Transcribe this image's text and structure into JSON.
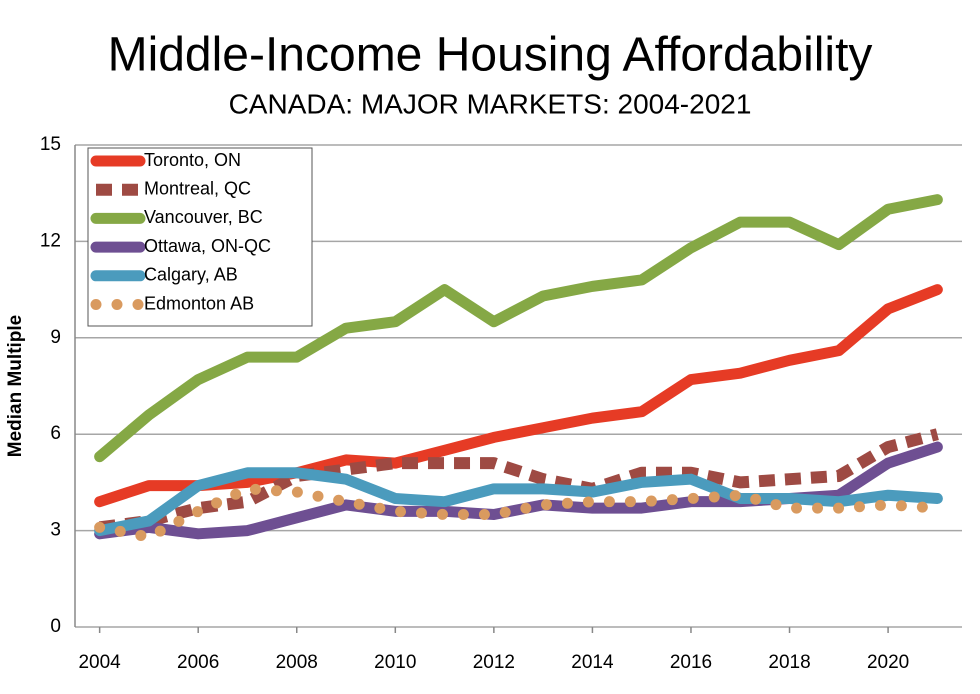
{
  "chart_data": {
    "type": "line",
    "title": "Middle-Income Housing Affordability",
    "subtitle": "CANADA: MAJOR MARKETS: 2004-2021",
    "y_label": "Median Multiple",
    "x": [
      2004,
      2005,
      2006,
      2007,
      2008,
      2009,
      2010,
      2011,
      2012,
      2013,
      2014,
      2015,
      2016,
      2017,
      2018,
      2019,
      2020,
      2021
    ],
    "xlim": [
      2003.5,
      2021.5
    ],
    "xticks": [
      2004,
      2006,
      2008,
      2010,
      2012,
      2014,
      2016,
      2018,
      2020
    ],
    "ylim": [
      0,
      15
    ],
    "yticks": [
      0,
      3,
      6,
      9,
      12,
      15
    ],
    "grid": true,
    "legend": "top-left",
    "series": [
      {
        "name": "Toronto, ON",
        "color": "#e63b25",
        "style": "solid",
        "values": [
          3.9,
          4.4,
          4.4,
          4.5,
          4.8,
          5.2,
          5.1,
          5.5,
          5.9,
          6.2,
          6.5,
          6.7,
          7.7,
          7.9,
          8.3,
          8.6,
          9.9,
          10.5
        ]
      },
      {
        "name": "Montreal, QC",
        "color": "#9e4a43",
        "style": "dashed",
        "values": [
          3.1,
          3.3,
          3.7,
          3.9,
          4.7,
          4.9,
          5.1,
          5.1,
          5.1,
          4.6,
          4.3,
          4.8,
          4.8,
          4.5,
          4.6,
          4.7,
          5.6,
          6.0
        ]
      },
      {
        "name": "Vancouver, BC",
        "color": "#85a845",
        "style": "solid",
        "values": [
          5.3,
          6.6,
          7.7,
          8.4,
          8.4,
          9.3,
          9.5,
          10.5,
          9.5,
          10.3,
          10.6,
          10.8,
          11.8,
          12.6,
          12.6,
          11.9,
          13.0,
          13.3
        ]
      },
      {
        "name": "Ottawa, ON-QC",
        "color": "#6e4f92",
        "style": "solid",
        "values": [
          2.9,
          3.1,
          2.9,
          3.0,
          3.4,
          3.8,
          3.6,
          3.6,
          3.5,
          3.8,
          3.7,
          3.7,
          3.9,
          3.9,
          4.0,
          4.1,
          5.1,
          5.6
        ]
      },
      {
        "name": "Calgary, AB",
        "color": "#4b9bbd",
        "style": "solid",
        "values": [
          3.0,
          3.3,
          4.4,
          4.8,
          4.8,
          4.6,
          4.0,
          3.9,
          4.3,
          4.3,
          4.2,
          4.5,
          4.6,
          4.0,
          4.0,
          3.9,
          4.1,
          4.0
        ]
      },
      {
        "name": "Edmonton AB",
        "color": "#d99a5f",
        "style": "dotted",
        "values": [
          3.1,
          2.8,
          3.6,
          4.3,
          4.2,
          3.9,
          3.6,
          3.5,
          3.5,
          3.8,
          3.9,
          3.9,
          4.0,
          4.1,
          3.7,
          3.7,
          3.8,
          3.7
        ]
      }
    ]
  }
}
